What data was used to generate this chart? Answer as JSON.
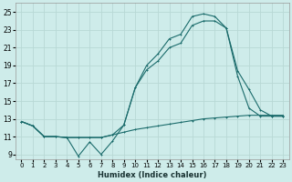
{
  "xlabel": "Humidex (Indice chaleur)",
  "bg_color": "#ceecea",
  "grid_color": "#b8d8d5",
  "line_color": "#1a6b6b",
  "xlim": [
    -0.5,
    23.5
  ],
  "ylim": [
    8.5,
    26.0
  ],
  "xticks": [
    0,
    1,
    2,
    3,
    4,
    5,
    6,
    7,
    8,
    9,
    10,
    11,
    12,
    13,
    14,
    15,
    16,
    17,
    18,
    19,
    20,
    21,
    22,
    23
  ],
  "yticks": [
    9,
    11,
    13,
    15,
    17,
    19,
    21,
    23,
    25
  ],
  "series1_x": [
    0,
    1,
    2,
    3,
    4,
    5,
    6,
    7,
    8,
    9,
    10,
    11,
    12,
    13,
    14,
    15,
    16,
    17,
    18,
    19,
    20,
    21,
    22,
    23
  ],
  "series1_y": [
    12.7,
    12.2,
    11.0,
    11.0,
    10.9,
    10.9,
    10.9,
    10.9,
    11.2,
    11.5,
    11.8,
    12.0,
    12.2,
    12.4,
    12.6,
    12.8,
    13.0,
    13.1,
    13.2,
    13.3,
    13.4,
    13.4,
    13.4,
    13.4
  ],
  "series2_x": [
    0,
    1,
    2,
    3,
    4,
    5,
    6,
    7,
    8,
    9,
    10,
    11,
    12,
    13,
    14,
    15,
    16,
    17,
    18,
    19,
    20,
    21,
    22,
    23
  ],
  "series2_y": [
    12.7,
    12.2,
    11.0,
    11.0,
    10.9,
    8.8,
    10.4,
    9.0,
    10.5,
    12.3,
    16.5,
    19.0,
    20.3,
    22.0,
    22.5,
    24.5,
    24.8,
    24.5,
    23.2,
    18.4,
    16.3,
    14.0,
    13.3,
    13.3
  ],
  "series3_x": [
    0,
    1,
    2,
    3,
    4,
    5,
    6,
    7,
    8,
    9,
    10,
    11,
    12,
    13,
    14,
    15,
    16,
    17,
    18,
    19,
    20,
    21,
    22,
    23
  ],
  "series3_y": [
    12.7,
    12.2,
    11.0,
    11.0,
    10.9,
    10.9,
    10.9,
    10.9,
    11.2,
    12.3,
    16.5,
    18.5,
    19.5,
    21.0,
    21.5,
    23.5,
    24.0,
    24.0,
    23.2,
    17.8,
    14.2,
    13.3,
    13.3,
    13.3
  ]
}
